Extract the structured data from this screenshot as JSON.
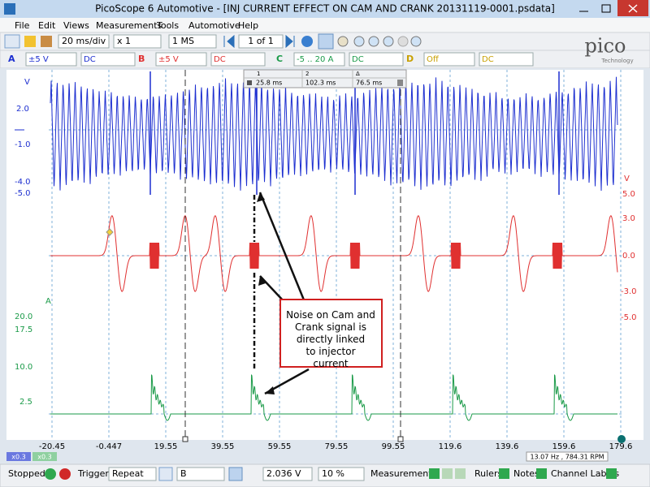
{
  "title_bar": {
    "title": "PicoScope 6 Automotive - [INJ CURRENT EFFECT ON CAM AND CRANK 20131119-0001.psdata]"
  },
  "menu": [
    "File",
    "Edit",
    "Views",
    "Measurements",
    "Tools",
    "Automotive",
    "Help"
  ],
  "toolbar": {
    "timebase": "20 ms/div",
    "zoom": "x 1",
    "samples": "1 MS",
    "buffer": "1 of 1"
  },
  "channels": [
    {
      "name": "A",
      "range": "±5 V",
      "coupling": "DC"
    },
    {
      "name": "B",
      "range": "±5 V",
      "coupling": "DC"
    },
    {
      "name": "C",
      "range": "-5 .. 20 A",
      "coupling": "DC"
    },
    {
      "name": "D",
      "range": "Off",
      "coupling": "DC"
    }
  ],
  "logo": {
    "name": "pico",
    "sub": "Technology"
  },
  "rulers_table": {
    "headers": [
      "1",
      "2",
      "Δ"
    ],
    "values": [
      "25.8 ms",
      "102.3 ms",
      "76.5 ms"
    ]
  },
  "axes": {
    "left_blue": {
      "unit": "V",
      "labels": [
        "2.0",
        "-1.0",
        "-4.0",
        "-5.0"
      ]
    },
    "left_green": {
      "unit": "A",
      "labels": [
        "20.0",
        "17.5",
        "10.0",
        "2.5"
      ]
    },
    "right_red": {
      "unit": "V",
      "labels": [
        "5.0",
        "3.0",
        "0.0",
        "-3.0",
        "-5.0"
      ]
    },
    "x": {
      "unit": "ms",
      "labels": [
        "-20.45",
        "-0.447",
        "19.55",
        "39.55",
        "59.55",
        "79.55",
        "99.55",
        "119.6",
        "139.6",
        "159.6",
        "179.6"
      ]
    }
  },
  "annotation": "Noise on Cam and Crank signal is directly linked to injector current",
  "zoom_labels": [
    "x0.3",
    "x0.3"
  ],
  "frequency_readout": "13.07 Hz , 784.31 RPM",
  "status_bar": {
    "state": "Stopped",
    "trigger_label": "Trigger",
    "trigger_mode": "Repeat",
    "trigger_channel": "B",
    "trigger_level": "2.036 V",
    "pre_trigger": "10 %",
    "measurements": "Measurements",
    "rulers": "Rulers",
    "notes": "Notes",
    "channel_labels": "Channel Labels"
  }
}
